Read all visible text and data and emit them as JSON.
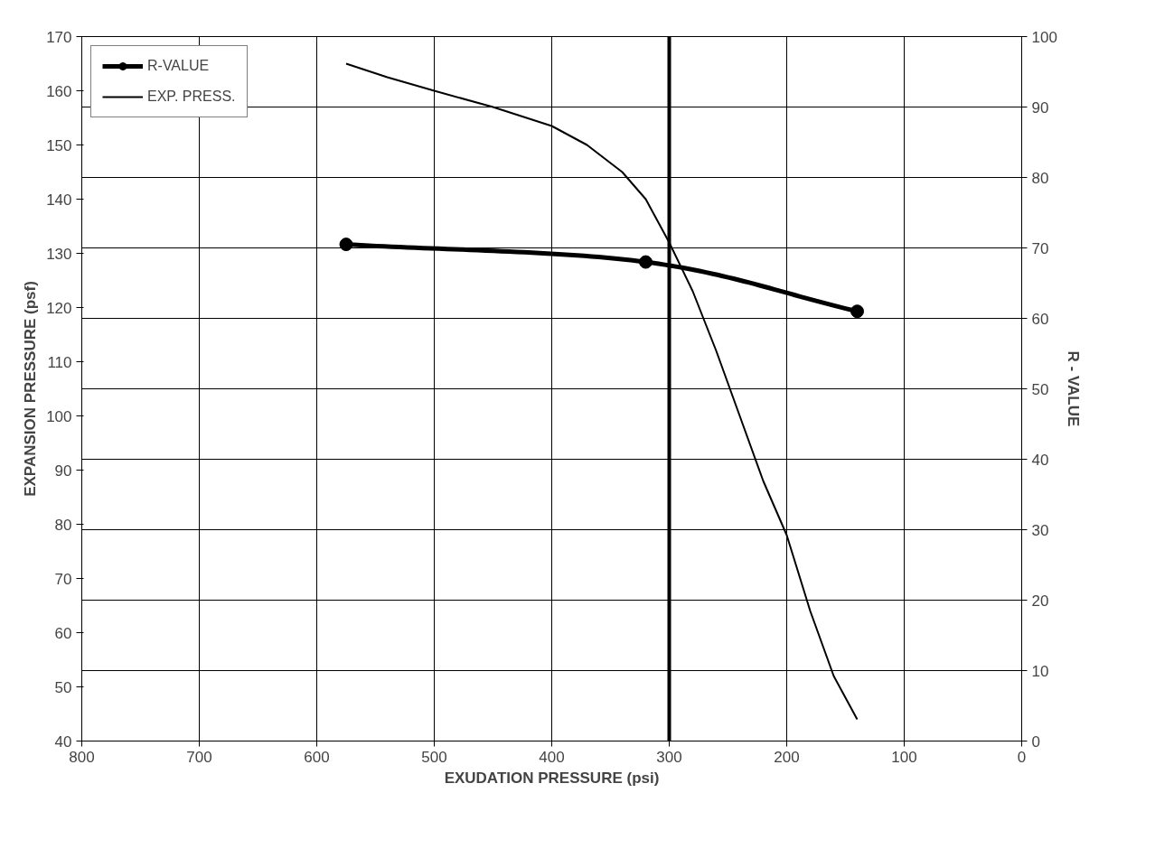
{
  "chart_data": {
    "type": "line",
    "xlabel": "EXUDATION PRESSURE (psi)",
    "ylabel": "EXPANSION PRESSURE (psf)",
    "y2label": "R - VALUE",
    "xlim": [
      800,
      0
    ],
    "xticks": [
      800,
      700,
      600,
      500,
      400,
      300,
      200,
      100,
      0
    ],
    "ylim": [
      40,
      170
    ],
    "yticks": [
      40,
      50,
      60,
      70,
      80,
      90,
      100,
      110,
      120,
      130,
      140,
      150,
      160,
      170
    ],
    "y2lim": [
      0,
      100
    ],
    "y2ticks": [
      0,
      10,
      20,
      30,
      40,
      50,
      60,
      70,
      80,
      90,
      100
    ],
    "series": [
      {
        "name": "R-VALUE",
        "color": "#000000",
        "axis": "y2",
        "marker": "circle",
        "x": [
          575,
          320,
          140
        ],
        "values": [
          70.5,
          68,
          61
        ]
      },
      {
        "name": "EXP. PRESS.",
        "color": "#000000",
        "marker": "none",
        "x": [
          575,
          540,
          500,
          450,
          400,
          370,
          340,
          320,
          300,
          280,
          260,
          240,
          220,
          200,
          180,
          160,
          140
        ],
        "values": [
          165,
          162.5,
          160,
          157,
          153.5,
          150,
          145,
          140,
          132,
          123,
          112,
          100,
          88,
          78,
          64,
          52,
          44
        ]
      }
    ],
    "ref_lines": [
      {
        "axis": "x",
        "value": 300,
        "color": "#000000"
      }
    ],
    "grid": true,
    "legend": "top left",
    "line_style": "solid"
  }
}
